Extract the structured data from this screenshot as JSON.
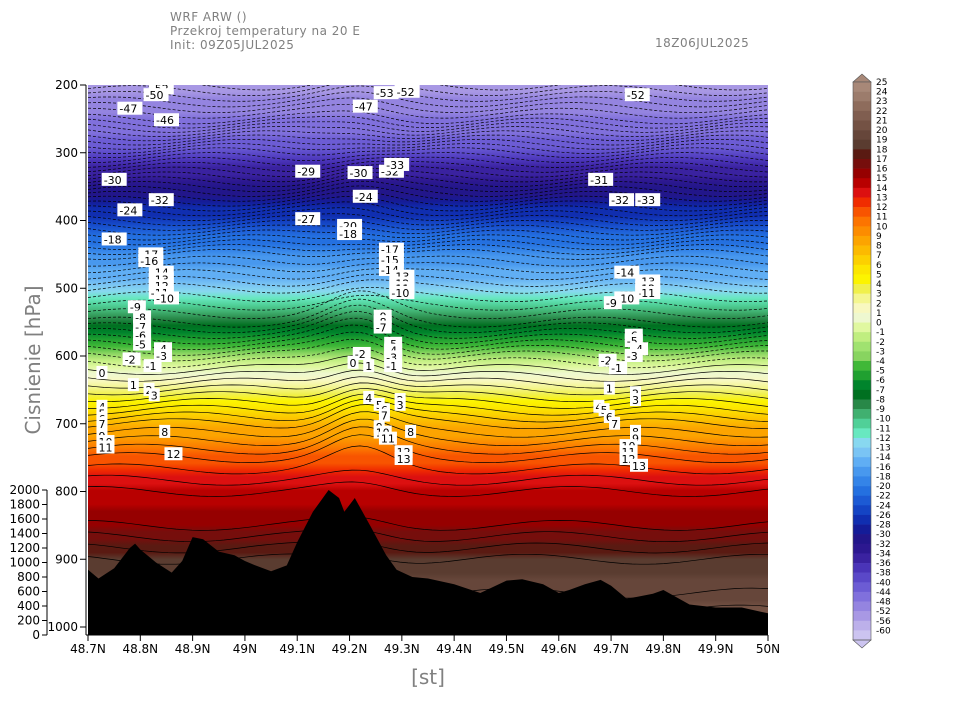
{
  "header": {
    "model": "WRF ARW ()",
    "title": "Przekroj temperatury na 20 E",
    "init": "Init: 09Z05JUL2025",
    "valid": "18Z06JUL2025"
  },
  "chart_data": {
    "type": "heatmap",
    "ylabel": "Cisnienie [hPa]",
    "xlabel": "[st]",
    "x_range": [
      48.7,
      50.0
    ],
    "y_range_hpa": [
      1000,
      200
    ],
    "x_ticks": [
      "48.7N",
      "48.8N",
      "48.9N",
      "49N",
      "49.1N",
      "49.2N",
      "49.3N",
      "49.4N",
      "49.5N",
      "49.6N",
      "49.7N",
      "49.8N",
      "49.9N",
      "50N"
    ],
    "x_tick_values": [
      48.7,
      48.8,
      48.9,
      49.0,
      49.1,
      49.2,
      49.3,
      49.4,
      49.5,
      49.6,
      49.7,
      49.8,
      49.9,
      50.0
    ],
    "y_ticks": [
      "200",
      "300",
      "400",
      "500",
      "600",
      "700",
      "800",
      "900",
      "1000"
    ],
    "y_tick_values": [
      200,
      300,
      400,
      500,
      600,
      700,
      800,
      900,
      1000
    ],
    "terrain_axis_ticks": [
      "2000",
      "1800",
      "1600",
      "1400",
      "1200",
      "1000",
      "800",
      "600",
      "400",
      "200",
      "0"
    ],
    "terrain_axis_values": [
      2000,
      1800,
      1600,
      1400,
      1200,
      1000,
      800,
      600,
      400,
      200,
      0
    ],
    "terrain_profile": {
      "x": [
        48.7,
        48.72,
        48.75,
        48.78,
        48.79,
        48.8,
        48.83,
        48.86,
        48.88,
        48.9,
        48.92,
        48.95,
        48.98,
        49.0,
        49.02,
        49.05,
        49.08,
        49.1,
        49.13,
        49.16,
        49.18,
        49.19,
        49.21,
        49.24,
        49.27,
        49.29,
        49.32,
        49.35,
        49.4,
        49.45,
        49.5,
        49.53,
        49.57,
        49.6,
        49.62,
        49.65,
        49.68,
        49.7,
        49.73,
        49.78,
        49.8,
        49.85,
        49.9,
        49.95,
        50.0
      ],
      "elev_m": [
        900,
        780,
        920,
        1200,
        1260,
        1180,
        1000,
        860,
        1020,
        1350,
        1320,
        1150,
        1100,
        1020,
        960,
        880,
        960,
        1280,
        1700,
        2000,
        1890,
        1700,
        1890,
        1500,
        1100,
        900,
        800,
        780,
        700,
        580,
        750,
        770,
        700,
        580,
        620,
        700,
        760,
        680,
        500,
        570,
        620,
        420,
        380,
        380,
        300
      ]
    },
    "colorbar": {
      "labels": [
        "25",
        "24",
        "23",
        "22",
        "21",
        "20",
        "19",
        "18",
        "17",
        "16",
        "15",
        "14",
        "13",
        "12",
        "11",
        "10",
        "9",
        "8",
        "7",
        "6",
        "5",
        "4",
        "3",
        "2",
        "1",
        "0",
        "-1",
        "-2",
        "-3",
        "-4",
        "-5",
        "-6",
        "-7",
        "-8",
        "-9",
        "-10",
        "-11",
        "-12",
        "-13",
        "-14",
        "-16",
        "-18",
        "-20",
        "-22",
        "-24",
        "-26",
        "-28",
        "-30",
        "-32",
        "-34",
        "-36",
        "-38",
        "-40",
        "-44",
        "-48",
        "-52",
        "-56",
        "-60"
      ],
      "colors": [
        "#a88878",
        "#9c7c6c",
        "#8e6c5c",
        "#805e50",
        "#745244",
        "#66463a",
        "#5a3c30",
        "#5a1a12",
        "#760e0c",
        "#960000",
        "#b80000",
        "#dc1010",
        "#f02c00",
        "#f85400",
        "#fc7400",
        "#fc8c00",
        "#fca400",
        "#fcba00",
        "#fcd000",
        "#fce600",
        "#fcf400",
        "#f0f04c",
        "#f4f690",
        "#f8f8c0",
        "#eef8d0",
        "#e0f8a0",
        "#c0ee80",
        "#a0e270",
        "#88d460",
        "#40b838",
        "#20a030",
        "#00842c",
        "#007020",
        "#288848",
        "#40b070",
        "#50d098",
        "#68e8c0",
        "#88d8f0",
        "#7ac4f4",
        "#60aef4",
        "#4898ee",
        "#3484e8",
        "#2470e0",
        "#1c5ad4",
        "#1444c4",
        "#102eb0",
        "#141c98",
        "#22168a",
        "#2c1890",
        "#3a22a0",
        "#4a34b8",
        "#5a48c8",
        "#6c5cd4",
        "#8070dc",
        "#9484e0",
        "#a898e4",
        "#bcb0ea",
        "#ccc4f0"
      ]
    },
    "temperature_profile": {
      "pressure_hpa": [
        1000,
        950,
        900,
        850,
        800,
        750,
        700,
        650,
        600,
        550,
        500,
        450,
        400,
        350,
        300,
        250,
        200
      ],
      "temp_c": [
        22,
        20,
        19,
        16,
        15,
        12,
        8,
        3,
        -2,
        -8,
        -12,
        -17,
        -24,
        -31,
        -38,
        -46,
        -52
      ]
    },
    "contour_labels": [
      {
        "text": "-52",
        "x": 48.82,
        "p": 205
      },
      {
        "text": "-50",
        "x": 48.81,
        "p": 215
      },
      {
        "text": "-47",
        "x": 48.76,
        "p": 235
      },
      {
        "text": "-46",
        "x": 48.83,
        "p": 252
      },
      {
        "text": "-32",
        "x": 48.82,
        "p": 370
      },
      {
        "text": "-30",
        "x": 48.73,
        "p": 340
      },
      {
        "text": "-24",
        "x": 48.76,
        "p": 385
      },
      {
        "text": "-18",
        "x": 48.73,
        "p": 428
      },
      {
        "text": "-17",
        "x": 48.8,
        "p": 450
      },
      {
        "text": "-16",
        "x": 48.8,
        "p": 460
      },
      {
        "text": "-14",
        "x": 48.82,
        "p": 477
      },
      {
        "text": "-13",
        "x": 48.82,
        "p": 487
      },
      {
        "text": "-12",
        "x": 48.82,
        "p": 497
      },
      {
        "text": "-11",
        "x": 48.82,
        "p": 507
      },
      {
        "text": "-10",
        "x": 48.83,
        "p": 515
      },
      {
        "text": "-9",
        "x": 48.78,
        "p": 528
      },
      {
        "text": "-8",
        "x": 48.79,
        "p": 543
      },
      {
        "text": "-7",
        "x": 48.79,
        "p": 557
      },
      {
        "text": "-6",
        "x": 48.79,
        "p": 570
      },
      {
        "text": "-5",
        "x": 48.79,
        "p": 583
      },
      {
        "text": "-4",
        "x": 48.83,
        "p": 590
      },
      {
        "text": "-3",
        "x": 48.83,
        "p": 600
      },
      {
        "text": "-2",
        "x": 48.77,
        "p": 605
      },
      {
        "text": "-1",
        "x": 48.81,
        "p": 615
      },
      {
        "text": "0",
        "x": 48.72,
        "p": 625
      },
      {
        "text": "1",
        "x": 48.78,
        "p": 643
      },
      {
        "text": "2",
        "x": 48.81,
        "p": 650
      },
      {
        "text": "3",
        "x": 48.82,
        "p": 658
      },
      {
        "text": "4",
        "x": 48.72,
        "p": 675
      },
      {
        "text": "5",
        "x": 48.72,
        "p": 685
      },
      {
        "text": "6",
        "x": 48.72,
        "p": 693
      },
      {
        "text": "7",
        "x": 48.72,
        "p": 700
      },
      {
        "text": "8",
        "x": 48.84,
        "p": 712
      },
      {
        "text": "9",
        "x": 48.72,
        "p": 718
      },
      {
        "text": "10",
        "x": 48.72,
        "p": 727
      },
      {
        "text": "11",
        "x": 48.72,
        "p": 735
      },
      {
        "text": "12",
        "x": 48.85,
        "p": 745
      },
      {
        "text": "-29",
        "x": 49.1,
        "p": 328
      },
      {
        "text": "-27",
        "x": 49.1,
        "p": 398
      },
      {
        "text": "-20",
        "x": 49.18,
        "p": 408
      },
      {
        "text": "-18",
        "x": 49.18,
        "p": 420
      },
      {
        "text": "-30",
        "x": 49.2,
        "p": 330
      },
      {
        "text": "-24",
        "x": 49.21,
        "p": 365
      },
      {
        "text": "-32",
        "x": 49.26,
        "p": 328
      },
      {
        "text": "-33",
        "x": 49.27,
        "p": 318
      },
      {
        "text": "-47",
        "x": 49.21,
        "p": 232
      },
      {
        "text": "-53",
        "x": 49.25,
        "p": 212
      },
      {
        "text": "-52",
        "x": 49.29,
        "p": 210
      },
      {
        "text": "-17",
        "x": 49.26,
        "p": 443
      },
      {
        "text": "-15",
        "x": 49.26,
        "p": 458
      },
      {
        "text": "-14",
        "x": 49.26,
        "p": 473
      },
      {
        "text": "-13",
        "x": 49.28,
        "p": 483
      },
      {
        "text": "-12",
        "x": 49.28,
        "p": 493
      },
      {
        "text": "-11",
        "x": 49.28,
        "p": 500
      },
      {
        "text": "-10",
        "x": 49.28,
        "p": 507
      },
      {
        "text": "-9",
        "x": 49.25,
        "p": 542
      },
      {
        "text": "-8",
        "x": 49.25,
        "p": 550
      },
      {
        "text": "-7",
        "x": 49.25,
        "p": 558
      },
      {
        "text": "-5",
        "x": 49.27,
        "p": 582
      },
      {
        "text": "-4",
        "x": 49.27,
        "p": 592
      },
      {
        "text": "-3",
        "x": 49.27,
        "p": 602
      },
      {
        "text": "-2",
        "x": 49.21,
        "p": 597
      },
      {
        "text": "0",
        "x": 49.2,
        "p": 610
      },
      {
        "text": "-1",
        "x": 49.27,
        "p": 615
      },
      {
        "text": "1",
        "x": 49.23,
        "p": 615
      },
      {
        "text": "2",
        "x": 49.29,
        "p": 665
      },
      {
        "text": "3",
        "x": 49.29,
        "p": 672
      },
      {
        "text": "4",
        "x": 49.23,
        "p": 662
      },
      {
        "text": "5",
        "x": 49.25,
        "p": 672
      },
      {
        "text": "6",
        "x": 49.26,
        "p": 680
      },
      {
        "text": "7",
        "x": 49.26,
        "p": 688
      },
      {
        "text": "8",
        "x": 49.31,
        "p": 712
      },
      {
        "text": "9",
        "x": 49.25,
        "p": 705
      },
      {
        "text": "10",
        "x": 49.25,
        "p": 713
      },
      {
        "text": "11",
        "x": 49.26,
        "p": 722
      },
      {
        "text": "12",
        "x": 49.29,
        "p": 742
      },
      {
        "text": "13",
        "x": 49.29,
        "p": 752
      },
      {
        "text": "-52",
        "x": 49.73,
        "p": 215
      },
      {
        "text": "-32",
        "x": 49.7,
        "p": 370
      },
      {
        "text": "-33",
        "x": 49.75,
        "p": 370
      },
      {
        "text": "-31",
        "x": 49.66,
        "p": 340
      },
      {
        "text": "-14",
        "x": 49.71,
        "p": 477
      },
      {
        "text": "-13",
        "x": 49.75,
        "p": 490
      },
      {
        "text": "-12",
        "x": 49.75,
        "p": 500
      },
      {
        "text": "-11",
        "x": 49.75,
        "p": 507
      },
      {
        "text": "-10",
        "x": 49.71,
        "p": 515
      },
      {
        "text": "-9",
        "x": 49.69,
        "p": 522
      },
      {
        "text": "-6",
        "x": 49.73,
        "p": 570
      },
      {
        "text": "-5",
        "x": 49.73,
        "p": 578
      },
      {
        "text": "-4",
        "x": 49.74,
        "p": 590
      },
      {
        "text": "-3",
        "x": 49.73,
        "p": 600
      },
      {
        "text": "-2",
        "x": 49.68,
        "p": 607
      },
      {
        "text": "-1",
        "x": 49.7,
        "p": 618
      },
      {
        "text": "1",
        "x": 49.69,
        "p": 648
      },
      {
        "text": "2",
        "x": 49.74,
        "p": 655
      },
      {
        "text": "3",
        "x": 49.74,
        "p": 665
      },
      {
        "text": "4",
        "x": 49.67,
        "p": 675
      },
      {
        "text": "5",
        "x": 49.68,
        "p": 680
      },
      {
        "text": "6",
        "x": 49.69,
        "p": 690
      },
      {
        "text": "7",
        "x": 49.7,
        "p": 700
      },
      {
        "text": "8",
        "x": 49.74,
        "p": 712
      },
      {
        "text": "9",
        "x": 49.74,
        "p": 722
      },
      {
        "text": "10",
        "x": 49.72,
        "p": 733
      },
      {
        "text": "11",
        "x": 49.72,
        "p": 742
      },
      {
        "text": "12",
        "x": 49.72,
        "p": 752
      },
      {
        "text": "13",
        "x": 49.74,
        "p": 762
      }
    ]
  }
}
